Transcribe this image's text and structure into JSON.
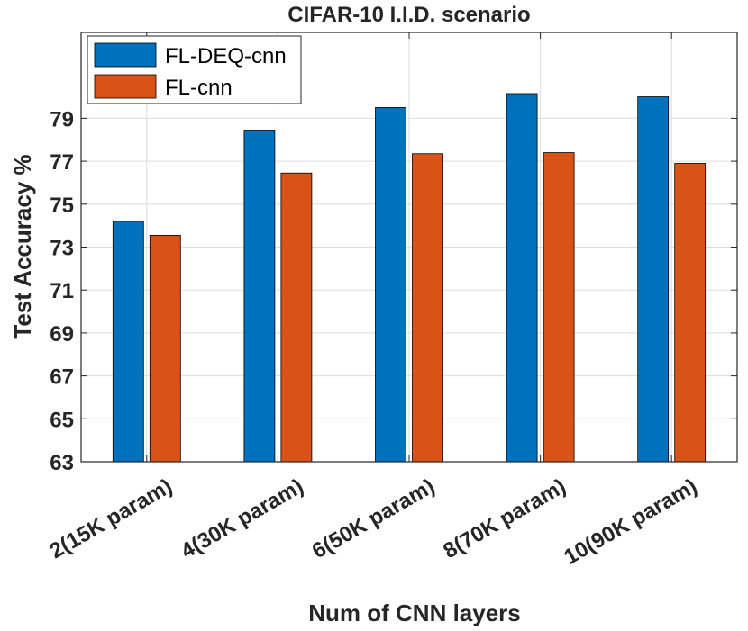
{
  "chart_data": {
    "type": "bar",
    "title": "CIFAR-10 I.I.D. scenario",
    "xlabel": "Num of CNN layers",
    "ylabel": "Test Accuracy %",
    "categories": [
      "2(15K param)",
      "4(30K param)",
      "6(50K param)",
      "8(70K param)",
      "10(90K param)"
    ],
    "series": [
      {
        "name": "FL-DEQ-cnn",
        "color": "#0072BD",
        "values": [
          74.2,
          78.45,
          79.5,
          80.15,
          80.0
        ]
      },
      {
        "name": "FL-cnn",
        "color": "#D95319",
        "values": [
          73.55,
          76.45,
          77.35,
          77.4,
          76.9
        ]
      }
    ],
    "ylim": [
      63,
      83
    ],
    "yticks": [
      63,
      65,
      67,
      69,
      71,
      73,
      75,
      77,
      79
    ],
    "grid": true,
    "legend_position": "top-left"
  }
}
